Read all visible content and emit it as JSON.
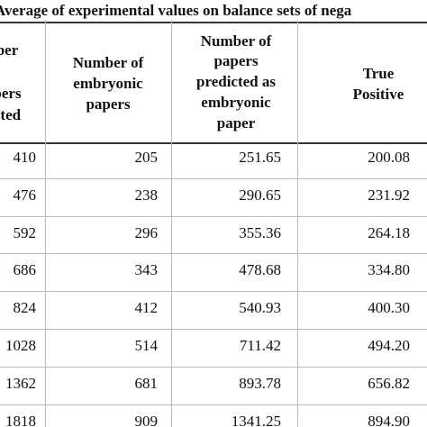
{
  "title": "Average of experimental values on balance sets of nega",
  "table": {
    "header": [
      [
        "ber",
        "pers",
        "cted"
      ],
      [
        "Number of",
        "embryonic",
        "papers"
      ],
      [
        "Number of",
        "papers",
        "predicted as",
        "embryonic",
        "paper"
      ],
      [
        "True",
        "Positive"
      ]
    ],
    "rows": [
      [
        "410",
        "205",
        "251.65",
        "200.08"
      ],
      [
        "476",
        "238",
        "290.65",
        "231.92"
      ],
      [
        "592",
        "296",
        "355.36",
        "264.18"
      ],
      [
        "686",
        "343",
        "478.68",
        "334.80"
      ],
      [
        "824",
        "412",
        "540.93",
        "400.30"
      ],
      [
        "1028",
        "514",
        "711.42",
        "494.20"
      ],
      [
        "1362",
        "681",
        "893.78",
        "656.82"
      ],
      [
        "1818",
        "909",
        "1341.25",
        "894.90"
      ]
    ]
  }
}
